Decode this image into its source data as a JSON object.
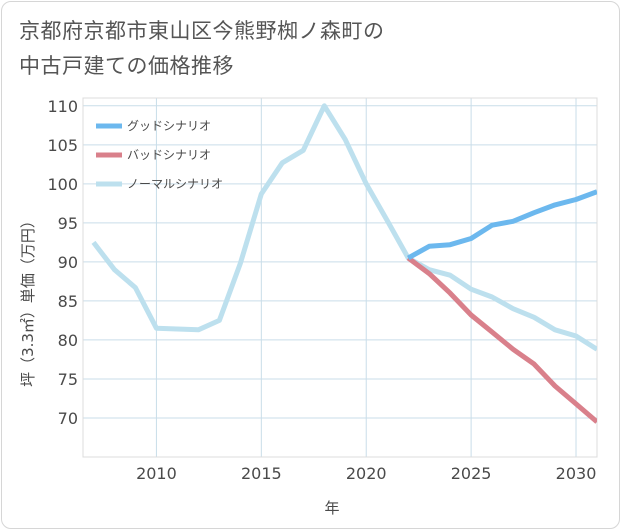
{
  "chart_data": {
    "type": "line",
    "title_lines": [
      "京都府京都市東山区今熊野椥ノ森町の",
      "中古戸建ての価格推移"
    ],
    "xlabel": "年",
    "ylabel": "坪（3.3㎡）単価（万円）",
    "xlim": [
      2006.5,
      2031
    ],
    "ylim": [
      65,
      111
    ],
    "x_ticks": [
      2010,
      2015,
      2020,
      2025,
      2030
    ],
    "y_ticks": [
      70,
      75,
      80,
      85,
      90,
      95,
      100,
      105,
      110
    ],
    "grid": true,
    "legend_position": "top-left",
    "series": [
      {
        "name": "グッドシナリオ",
        "color": "#6cb8ee",
        "x": [
          2022,
          2023,
          2024,
          2025,
          2026,
          2027,
          2028,
          2029,
          2030,
          2031
        ],
        "y": [
          90.5,
          92.0,
          92.2,
          93.0,
          94.7,
          95.2,
          96.3,
          97.3,
          98.0,
          99.0
        ]
      },
      {
        "name": "バッドシナリオ",
        "color": "#d9808b",
        "x": [
          2022,
          2023,
          2024,
          2025,
          2026,
          2027,
          2028,
          2029,
          2030,
          2031
        ],
        "y": [
          90.5,
          88.5,
          86.0,
          83.2,
          81.0,
          78.8,
          76.9,
          74.1,
          71.8,
          69.5
        ]
      },
      {
        "name": "ノーマルシナリオ",
        "color": "#bde0ee",
        "x": [
          2007,
          2008,
          2009,
          2010,
          2011,
          2012,
          2013,
          2014,
          2015,
          2016,
          2017,
          2018,
          2019,
          2020,
          2021,
          2022,
          2023,
          2024,
          2025,
          2026,
          2027,
          2028,
          2029,
          2030,
          2031
        ],
        "y": [
          92.5,
          89.0,
          86.7,
          81.5,
          81.4,
          81.3,
          82.5,
          89.8,
          98.7,
          102.7,
          104.3,
          110.0,
          105.7,
          100.0,
          95.3,
          90.5,
          89.0,
          88.3,
          86.5,
          85.5,
          84.0,
          82.9,
          81.3,
          80.5,
          78.8
        ]
      }
    ]
  }
}
